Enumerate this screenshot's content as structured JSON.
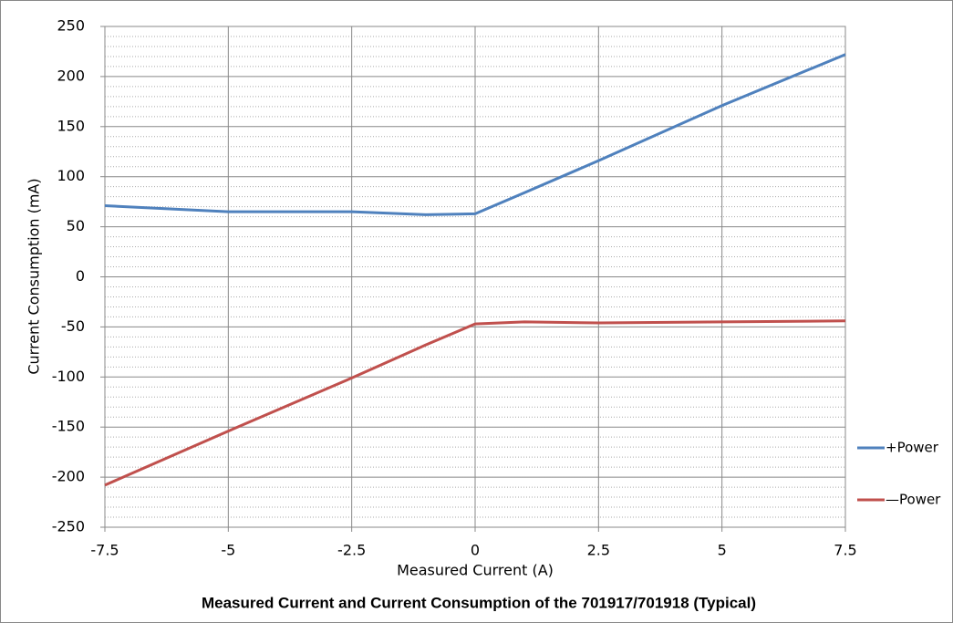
{
  "chart_data": {
    "type": "line",
    "title": "Measured Current and Current Consumption of the 701917/701918 (Typical)",
    "x_label": "Measured Current (A)",
    "y_label": "Current Consumption (mA)",
    "x": [
      -7.5,
      -5,
      -2.5,
      -1,
      0,
      1,
      2.5,
      5,
      7.5
    ],
    "series": [
      {
        "name": "+Power",
        "color": "#4f81bd",
        "values": [
          71,
          65,
          65,
          62,
          63,
          84,
          116,
          171,
          222
        ]
      },
      {
        "name": "—Power",
        "color": "#c0504d",
        "values": [
          -208,
          -154,
          -101,
          -68,
          -47,
          -45,
          -46,
          -45,
          -44
        ]
      }
    ],
    "xlim": [
      -7.5,
      7.5
    ],
    "xticks": [
      -7.5,
      -5,
      -2.5,
      0,
      2.5,
      5,
      7.5
    ],
    "ylim": [
      -250,
      250
    ],
    "yticks": [
      -250,
      -200,
      -150,
      -100,
      -50,
      0,
      50,
      100,
      150,
      200,
      250
    ],
    "grid": true,
    "legend": "right"
  }
}
